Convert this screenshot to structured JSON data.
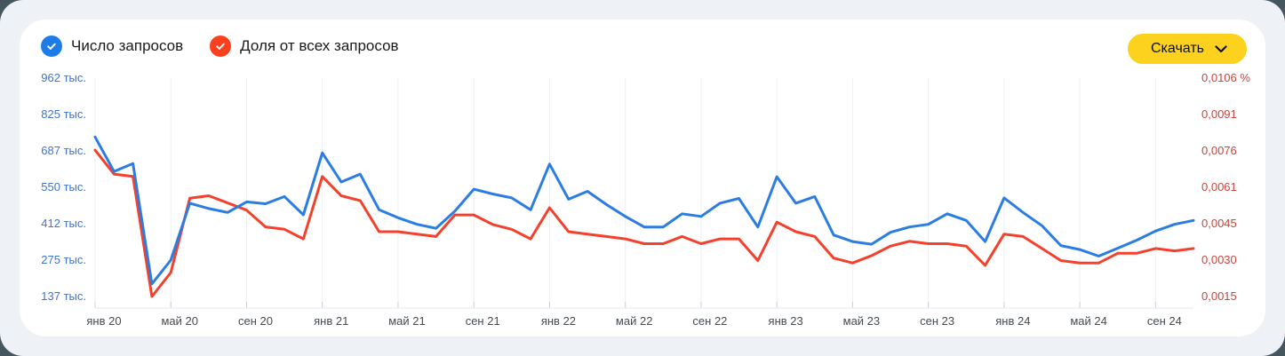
{
  "legend": {
    "series1": "Число запросов",
    "series2": "Доля от всех запросов"
  },
  "toolbar": {
    "download_label": "Скачать"
  },
  "colors": {
    "page_outer": "#46565e",
    "page_band": "#eef1f6",
    "card": "#ffffff",
    "button_yellow": "#fcd21e",
    "legend_blue": "#1e7ce8",
    "legend_red": "#fc3f1d"
  },
  "chart_data": {
    "type": "line",
    "title": "",
    "grid": "vertical-only",
    "legend_position": "top-left",
    "left_axis": {
      "labels": [
        "962 тыс.",
        "825 тыс.",
        "687 тыс.",
        "550 тыс.",
        "412 тыс.",
        "275 тыс.",
        "137 тыс."
      ],
      "unit": "тыс.",
      "top_value": 962.5,
      "bottom_value": 137.5,
      "color": "#3f74c9"
    },
    "right_axis": {
      "labels": [
        "0,0106 %",
        "0,0091",
        "0,0076",
        "0,0061",
        "0,0045",
        "0,0030",
        "0,0015"
      ],
      "unit": "%",
      "top_value": 0.0106,
      "bottom_value": 0.0015,
      "color": "#c7453c"
    },
    "x_axis": {
      "tick_labels": [
        "янв 20",
        "май 20",
        "сен 20",
        "янв 21",
        "май 21",
        "сен 21",
        "янв 22",
        "май 22",
        "сен 22",
        "янв 23",
        "май 23",
        "сен 23",
        "янв 24",
        "май 24",
        "сен 24"
      ],
      "tick_every_n_months": 4,
      "label_color": "#454b52",
      "grid_color": "#edf0f4",
      "axis_line_color": "#e4e7ec",
      "tick_color": "#ccd1d8"
    },
    "months": [
      "2020-01",
      "2020-02",
      "2020-03",
      "2020-04",
      "2020-05",
      "2020-06",
      "2020-07",
      "2020-08",
      "2020-09",
      "2020-10",
      "2020-11",
      "2020-12",
      "2021-01",
      "2021-02",
      "2021-03",
      "2021-04",
      "2021-05",
      "2021-06",
      "2021-07",
      "2021-08",
      "2021-09",
      "2021-10",
      "2021-11",
      "2021-12",
      "2022-01",
      "2022-02",
      "2022-03",
      "2022-04",
      "2022-05",
      "2022-06",
      "2022-07",
      "2022-08",
      "2022-09",
      "2022-10",
      "2022-11",
      "2022-12",
      "2023-01",
      "2023-02",
      "2023-03",
      "2023-04",
      "2023-05",
      "2023-06",
      "2023-07",
      "2023-08",
      "2023-09",
      "2023-10",
      "2023-11",
      "2023-12",
      "2024-01",
      "2024-02",
      "2024-03",
      "2024-04",
      "2024-05",
      "2024-06",
      "2024-07",
      "2024-08",
      "2024-09",
      "2024-10",
      "2024-11"
    ],
    "series": [
      {
        "name": "Доля от всех запросов",
        "axis": "right",
        "color": "#f4402c",
        "values": [
          0.0076,
          0.0066,
          0.0065,
          0.0015,
          0.0025,
          0.0056,
          0.0057,
          0.0054,
          0.0051,
          0.0044,
          0.0043,
          0.0039,
          0.0065,
          0.0057,
          0.0055,
          0.0042,
          0.0042,
          0.0041,
          0.004,
          0.0049,
          0.0049,
          0.0045,
          0.0043,
          0.0039,
          0.0052,
          0.0042,
          0.0041,
          0.004,
          0.0039,
          0.0037,
          0.0037,
          0.004,
          0.0037,
          0.0039,
          0.0039,
          0.003,
          0.0046,
          0.0042,
          0.004,
          0.0031,
          0.0029,
          0.0032,
          0.0036,
          0.0038,
          0.0037,
          0.0037,
          0.0036,
          0.0028,
          0.0041,
          0.004,
          0.0035,
          0.003,
          0.0029,
          0.0029,
          0.0033,
          0.0033,
          0.0035,
          0.0034,
          0.0035
        ]
      },
      {
        "name": "Число запросов",
        "axis": "left",
        "color": "#2b7de2",
        "values": [
          740,
          610,
          640,
          185,
          275,
          490,
          470,
          455,
          495,
          488,
          515,
          446,
          680,
          570,
          600,
          465,
          435,
          410,
          395,
          460,
          543,
          525,
          510,
          465,
          638,
          505,
          535,
          485,
          440,
          400,
          400,
          450,
          440,
          490,
          508,
          400,
          590,
          490,
          515,
          370,
          345,
          335,
          380,
          400,
          410,
          450,
          425,
          345,
          510,
          455,
          405,
          330,
          315,
          290,
          320,
          350,
          385,
          410,
          425
        ]
      }
    ]
  }
}
